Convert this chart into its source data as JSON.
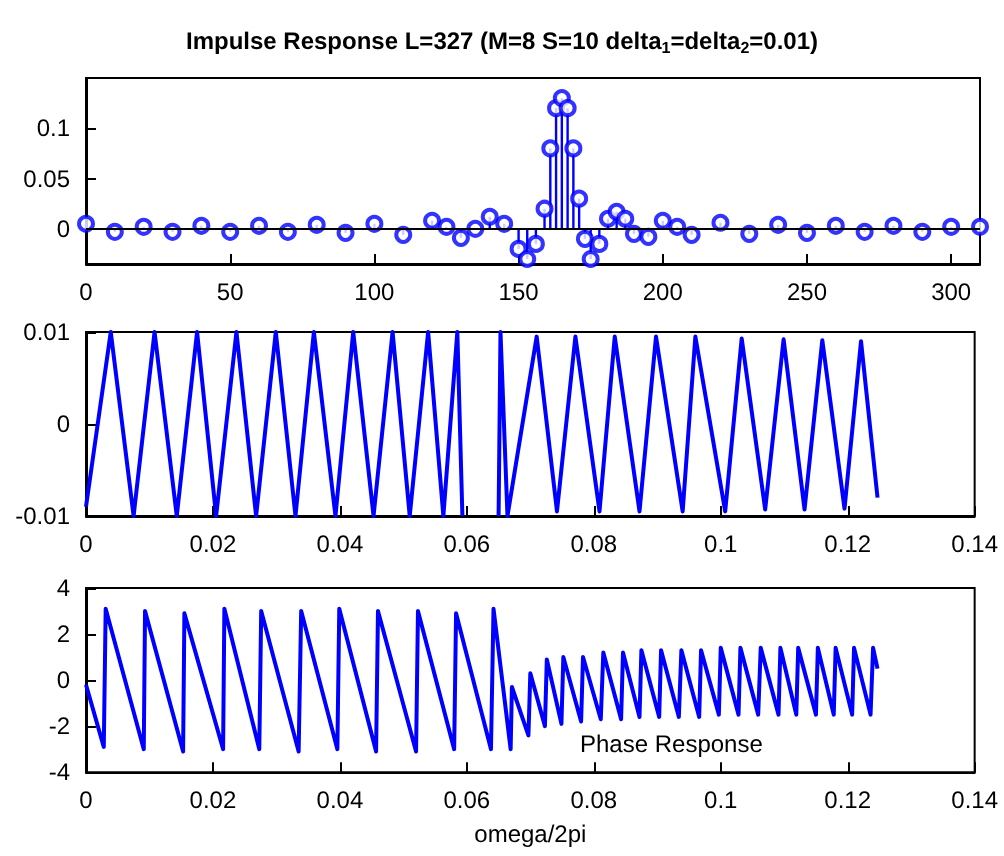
{
  "chart_data": [
    {
      "type": "lollipop",
      "title": "Impulse Response L=327 (M=8 S=10 delta$_{1}$=delta$_{2}$=0.01)",
      "marker": "circle",
      "grid": false,
      "xlim": [
        0,
        310
      ],
      "xticks": [
        0,
        50,
        100,
        150,
        200,
        250,
        300
      ],
      "ylim": [
        -0.035,
        0.15
      ],
      "yticks": [
        0,
        0.05,
        0.1
      ],
      "ref_lines": [
        {
          "axis": "y",
          "value": 0,
          "color": "#000000"
        }
      ],
      "series": [
        {
          "color": "#0000ff",
          "x": [
            0,
            10,
            20,
            30,
            40,
            50,
            60,
            70,
            80,
            90,
            100,
            110,
            120,
            125,
            130,
            135,
            140,
            145,
            150,
            153,
            156,
            159,
            161,
            163,
            165,
            167,
            169,
            171,
            173,
            175,
            178,
            181,
            184,
            187,
            190,
            195,
            200,
            205,
            210,
            220,
            230,
            240,
            250,
            260,
            270,
            280,
            290,
            300,
            310
          ],
          "values": [
            0.005,
            -0.003,
            0.002,
            -0.003,
            0.003,
            -0.003,
            0.003,
            -0.003,
            0.004,
            -0.004,
            0.005,
            -0.006,
            0.008,
            0.002,
            -0.009,
            0,
            0.012,
            0.005,
            -0.02,
            -0.03,
            -0.015,
            0.02,
            0.08,
            0.12,
            0.13,
            0.12,
            0.08,
            0.03,
            -0.01,
            -0.03,
            -0.015,
            0.01,
            0.017,
            0.01,
            -0.005,
            -0.008,
            0.008,
            0.002,
            -0.006,
            0.006,
            -0.005,
            0.004,
            -0.004,
            0.003,
            -0.003,
            0.003,
            -0.003,
            0.002,
            0.002
          ]
        }
      ]
    },
    {
      "type": "line",
      "grid": false,
      "marker": "none",
      "xlim": [
        0,
        0.14
      ],
      "xticks": [
        0,
        0.02,
        0.04,
        0.06,
        0.08,
        0.1,
        0.12,
        0.14
      ],
      "ylim": [
        -0.01,
        0.01
      ],
      "yticks": [
        -0.01,
        0,
        0.01
      ],
      "series": [
        {
          "color": "#0000ff",
          "x": [
            0,
            0.0039,
            0.0075,
            0.0108,
            0.0143,
            0.0175,
            0.0205,
            0.0237,
            0.0268,
            0.0299,
            0.033,
            0.0359,
            0.0393,
            0.0421,
            0.0453,
            0.0483,
            0.051,
            0.0539,
            0.0563,
            0.0585,
            0.0593,
            0.062,
            0.065,
            0.0653,
            0.0664,
            0.071,
            0.0742,
            0.0771,
            0.0809,
            0.0833,
            0.0872,
            0.0898,
            0.094,
            0.096,
            0.1007,
            0.1033,
            0.107,
            0.1099,
            0.1132,
            0.116,
            0.1195,
            0.1221,
            0.1247
          ],
          "values": [
            -0.009,
            0.01,
            -0.01,
            0.01,
            -0.01,
            0.01,
            -0.01,
            0.01,
            -0.01,
            0.01,
            -0.01,
            0.01,
            -0.01,
            0.01,
            -0.01,
            0.01,
            -0.01,
            0.01,
            -0.01,
            0.01,
            -0.01,
            null,
            -0.01,
            0.01,
            -0.01,
            0.0095,
            -0.0095,
            0.0095,
            -0.0095,
            0.0095,
            -0.0095,
            0.0095,
            -0.0095,
            0.0095,
            -0.0095,
            0.0093,
            -0.0093,
            0.0092,
            -0.0093,
            0.0091,
            -0.0092,
            0.009,
            -0.008
          ]
        }
      ]
    },
    {
      "type": "line",
      "grid": false,
      "marker": "none",
      "xlabel": "omega/2pi",
      "annotations": [
        "Phase Response"
      ],
      "xlim": [
        0,
        0.14
      ],
      "xticks": [
        0,
        0.02,
        0.04,
        0.06,
        0.08,
        0.1,
        0.12,
        0.14
      ],
      "ylim": [
        -4,
        4
      ],
      "yticks": [
        -4,
        -2,
        0,
        2,
        4
      ],
      "series": [
        {
          "color": "#0000ff",
          "x": [
            0,
            0.0028,
            0.0031,
            0.0091,
            0.0093,
            0.0153,
            0.0155,
            0.0216,
            0.0218,
            0.0273,
            0.0276,
            0.0335,
            0.0339,
            0.0396,
            0.0399,
            0.0457,
            0.046,
            0.052,
            0.0523,
            0.058,
            0.0583,
            0.0638,
            0.0642,
            0.0669,
            0.0671,
            0.0697,
            0.07,
            0.0723,
            0.0726,
            0.0749,
            0.0752,
            0.078,
            0.0783,
            0.0811,
            0.0815,
            0.0843,
            0.0846,
            0.0872,
            0.0875,
            0.0903,
            0.0906,
            0.0934,
            0.0938,
            0.0966,
            0.0969,
            0.0997,
            0.1,
            0.1028,
            0.1031,
            0.1059,
            0.1063,
            0.1091,
            0.1094,
            0.1119,
            0.1122,
            0.115,
            0.1153,
            0.1178,
            0.1181,
            0.1207,
            0.121,
            0.1236,
            0.124,
            0.1247
          ],
          "values": [
            -0.2,
            -2.9,
            3.1,
            -3,
            3,
            -3.1,
            2.9,
            -3,
            3.1,
            -3,
            3,
            -3.1,
            3,
            -3,
            3.1,
            -3.1,
            3,
            -3.1,
            3,
            -3,
            2.9,
            -3,
            3.1,
            -3,
            -0.3,
            -2.4,
            0.3,
            -2,
            0.9,
            -1.9,
            1,
            -1.8,
            1,
            -1.7,
            1.2,
            -1.7,
            1.2,
            -1.6,
            1.3,
            -1.6,
            1.3,
            -1.6,
            1.3,
            -1.6,
            1.3,
            -1.5,
            1.4,
            -1.5,
            1.4,
            -1.5,
            1.4,
            -1.5,
            1.4,
            -1.5,
            1.4,
            -1.5,
            1.4,
            -1.5,
            1.4,
            -1.5,
            1.4,
            -1.5,
            1.4,
            0.5
          ]
        }
      ]
    }
  ]
}
